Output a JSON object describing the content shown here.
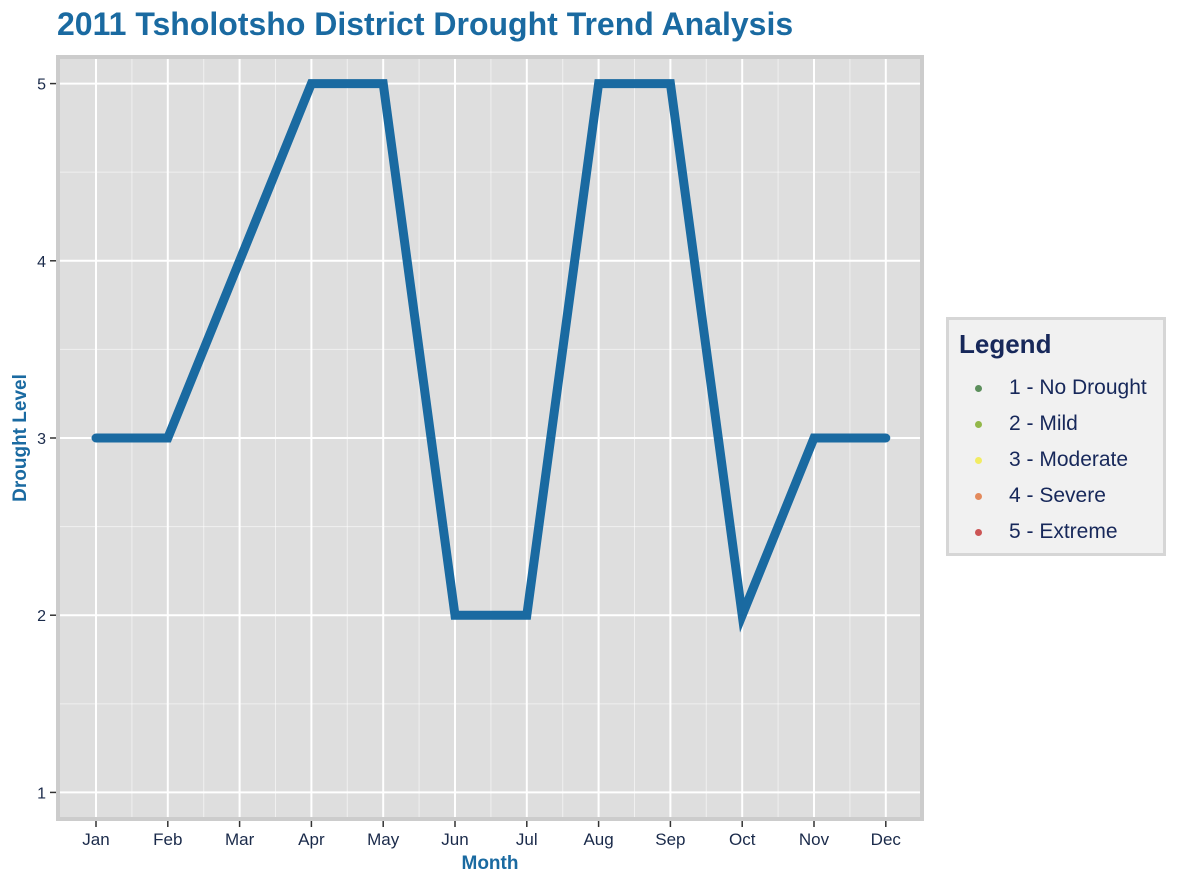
{
  "chart_data": {
    "type": "line",
    "title": "2011 Tsholotsho District Drought Trend Analysis",
    "xlabel": "Month",
    "ylabel": "Drought Level",
    "categories": [
      "Jan",
      "Feb",
      "Mar",
      "Apr",
      "May",
      "Jun",
      "Jul",
      "Aug",
      "Sep",
      "Oct",
      "Nov",
      "Dec"
    ],
    "series": [
      {
        "values": [
          3,
          3,
          4,
          5,
          5,
          2,
          2,
          5,
          5,
          2,
          3,
          3
        ],
        "color": "#1a6aa1"
      }
    ],
    "y_ticks": [
      1,
      2,
      3,
      4,
      5
    ],
    "ylim": [
      0.85,
      5.15
    ],
    "grid": true,
    "legend_position": "right",
    "legend": {
      "title": "Legend",
      "items": [
        {
          "label": "1 - No Drought",
          "color": "#5c8f5c"
        },
        {
          "label": "2 - Mild",
          "color": "#93b84a"
        },
        {
          "label": "3 - Moderate",
          "color": "#f2ec63"
        },
        {
          "label": "4 - Severe",
          "color": "#e38a5c"
        },
        {
          "label": "5 - Extreme",
          "color": "#cc5555"
        }
      ]
    },
    "colors": {
      "title": "#1a6aa1",
      "axis_title": "#1a6aa1",
      "panel_background": "#dedede",
      "panel_border": "#cccccc",
      "grid": "#ffffff",
      "tick_label": "#1a2a4a"
    }
  }
}
